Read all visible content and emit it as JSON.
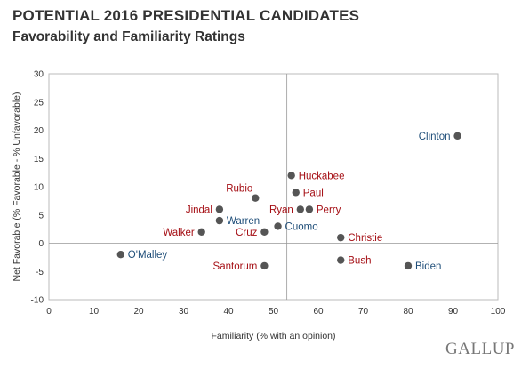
{
  "title": "POTENTIAL 2016 PRESIDENTIAL CANDIDATES",
  "subtitle": "Favorability and Familiarity Ratings",
  "brand": "GALLUP",
  "colors": {
    "democrat": "#1f4e79",
    "republican": "#a50f15",
    "point": "#555555",
    "axis": "#999999",
    "text": "#333333",
    "plot_border": "#bbbbbb"
  },
  "chart_data": {
    "type": "scatter",
    "xlabel": "Familiarity (% with an opinion)",
    "ylabel": "Net Favorable (% Favorable - % Unfavorable)",
    "xlim": [
      0,
      100
    ],
    "ylim": [
      -10,
      30
    ],
    "xticks": [
      0,
      10,
      20,
      30,
      40,
      50,
      60,
      70,
      80,
      90,
      100
    ],
    "yticks": [
      -10,
      -5,
      0,
      5,
      10,
      15,
      20,
      25,
      30
    ],
    "xref": 53,
    "yref": 0,
    "points": [
      {
        "label": "Clinton",
        "x": 91,
        "y": 19,
        "party": "democrat",
        "label_side": "left"
      },
      {
        "label": "Huckabee",
        "x": 54,
        "y": 12,
        "party": "republican",
        "label_side": "right"
      },
      {
        "label": "Paul",
        "x": 55,
        "y": 9,
        "party": "republican",
        "label_side": "right"
      },
      {
        "label": "Rubio",
        "x": 46,
        "y": 8,
        "party": "republican",
        "label_side": "above-left"
      },
      {
        "label": "Jindal",
        "x": 38,
        "y": 6,
        "party": "republican",
        "label_side": "left"
      },
      {
        "label": "Ryan",
        "x": 56,
        "y": 6,
        "party": "republican",
        "label_side": "left"
      },
      {
        "label": "Perry",
        "x": 58,
        "y": 6,
        "party": "republican",
        "label_side": "right"
      },
      {
        "label": "Warren",
        "x": 38,
        "y": 4,
        "party": "democrat",
        "label_side": "right"
      },
      {
        "label": "Cuomo",
        "x": 51,
        "y": 3,
        "party": "democrat",
        "label_side": "right"
      },
      {
        "label": "Walker",
        "x": 34,
        "y": 2,
        "party": "republican",
        "label_side": "left"
      },
      {
        "label": "Cruz",
        "x": 48,
        "y": 2,
        "party": "republican",
        "label_side": "left"
      },
      {
        "label": "Christie",
        "x": 65,
        "y": 1,
        "party": "republican",
        "label_side": "right"
      },
      {
        "label": "O'Malley",
        "x": 16,
        "y": -2,
        "party": "democrat",
        "label_side": "right"
      },
      {
        "label": "Bush",
        "x": 65,
        "y": -3,
        "party": "republican",
        "label_side": "right"
      },
      {
        "label": "Santorum",
        "x": 48,
        "y": -4,
        "party": "republican",
        "label_side": "left"
      },
      {
        "label": "Biden",
        "x": 80,
        "y": -4,
        "party": "democrat",
        "label_side": "right"
      }
    ]
  }
}
